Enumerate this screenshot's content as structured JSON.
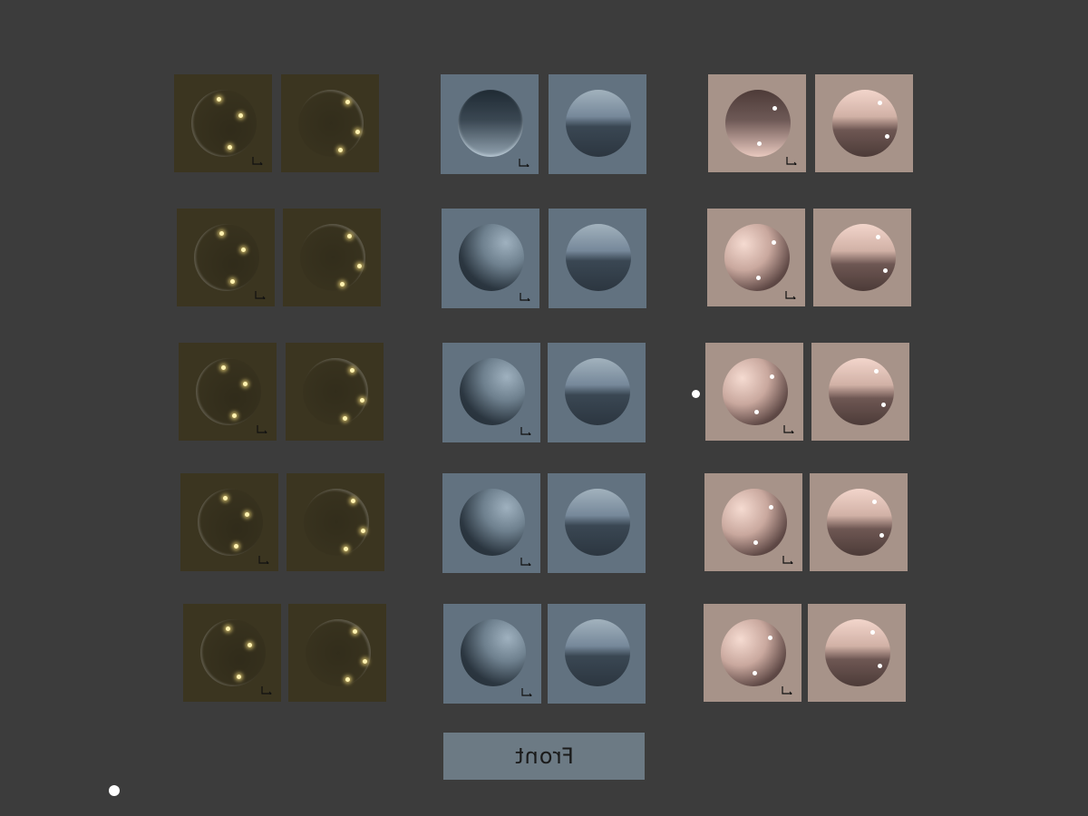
{
  "columns": [
    "gold",
    "blue",
    "pink"
  ],
  "rows": 5,
  "colors": {
    "background": "#3c3c3c",
    "gold_tile": "#3b3520",
    "blue_tile": "#627280",
    "pink_tile": "#a79389",
    "button": "#6c7a84"
  },
  "tile_icons": [
    "sphere-icon",
    "axis-gizmo-icon"
  ],
  "button": {
    "label": "Front"
  }
}
